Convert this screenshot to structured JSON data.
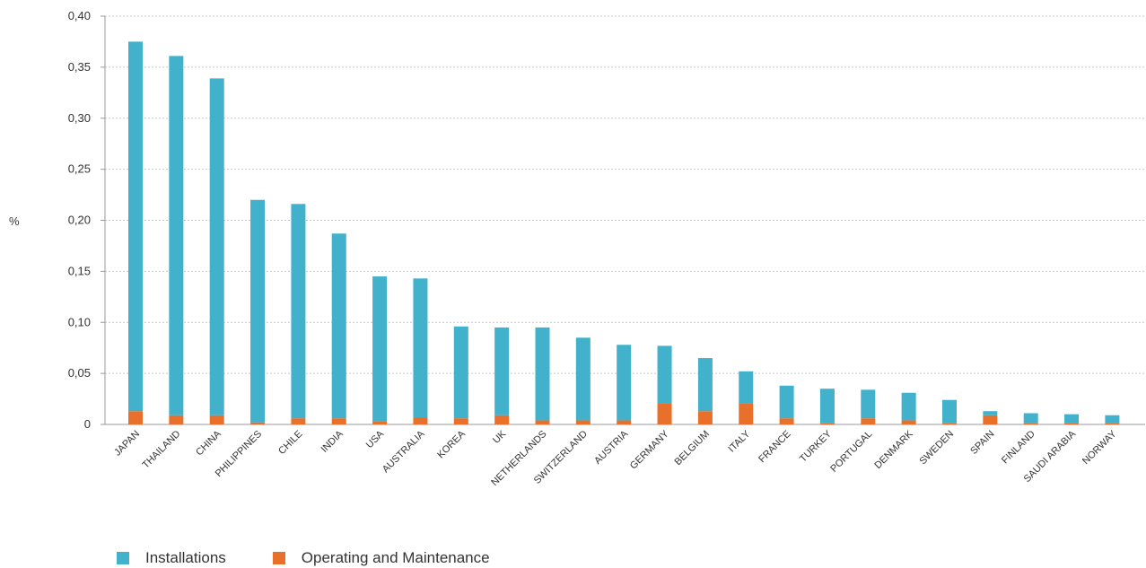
{
  "chart_data": {
    "type": "bar",
    "stacked": true,
    "ylabel": "%",
    "ylim": [
      0,
      0.4
    ],
    "yticks": [
      {
        "value": 0,
        "label": "0"
      },
      {
        "value": 0.05,
        "label": "0,05"
      },
      {
        "value": 0.1,
        "label": "0,10"
      },
      {
        "value": 0.15,
        "label": "0,15"
      },
      {
        "value": 0.2,
        "label": "0,20"
      },
      {
        "value": 0.25,
        "label": "0,25"
      },
      {
        "value": 0.3,
        "label": "0,30"
      },
      {
        "value": 0.35,
        "label": "0,35"
      },
      {
        "value": 0.4,
        "label": "0,40"
      }
    ],
    "grid": true,
    "legend_position": "bottom-left",
    "categories": [
      "JAPAN",
      "THAILAND",
      "CHINA",
      "PHILIPPINES",
      "CHILE",
      "INDIA",
      "USA",
      "AUSTRALIA",
      "KOREA",
      "UK",
      "NETHERLANDS",
      "SWITZERLAND",
      "AUSTRIA",
      "GERMANY",
      "BELGIUM",
      "ITALY",
      "FRANCE",
      "TURKEY",
      "PORTUGAL",
      "DENMARK",
      "SWEDEN",
      "SPAIN",
      "FINLAND",
      "SAUDI ARABIA",
      "NORWAY"
    ],
    "series": [
      {
        "name": "Operating and Maintenance",
        "color": "#e8702a",
        "values": [
          0.013,
          0.009,
          0.009,
          0.002,
          0.006,
          0.006,
          0.003,
          0.007,
          0.006,
          0.009,
          0.004,
          0.004,
          0.004,
          0.021,
          0.013,
          0.021,
          0.006,
          0.001,
          0.006,
          0.004,
          0.001,
          0.009,
          0.001,
          0.001,
          0.001
        ]
      },
      {
        "name": "Installations",
        "color": "#42b1cc",
        "values": [
          0.362,
          0.352,
          0.33,
          0.218,
          0.21,
          0.181,
          0.142,
          0.136,
          0.09,
          0.086,
          0.091,
          0.081,
          0.074,
          0.056,
          0.052,
          0.031,
          0.032,
          0.034,
          0.028,
          0.027,
          0.023,
          0.004,
          0.01,
          0.009,
          0.008
        ]
      }
    ]
  }
}
